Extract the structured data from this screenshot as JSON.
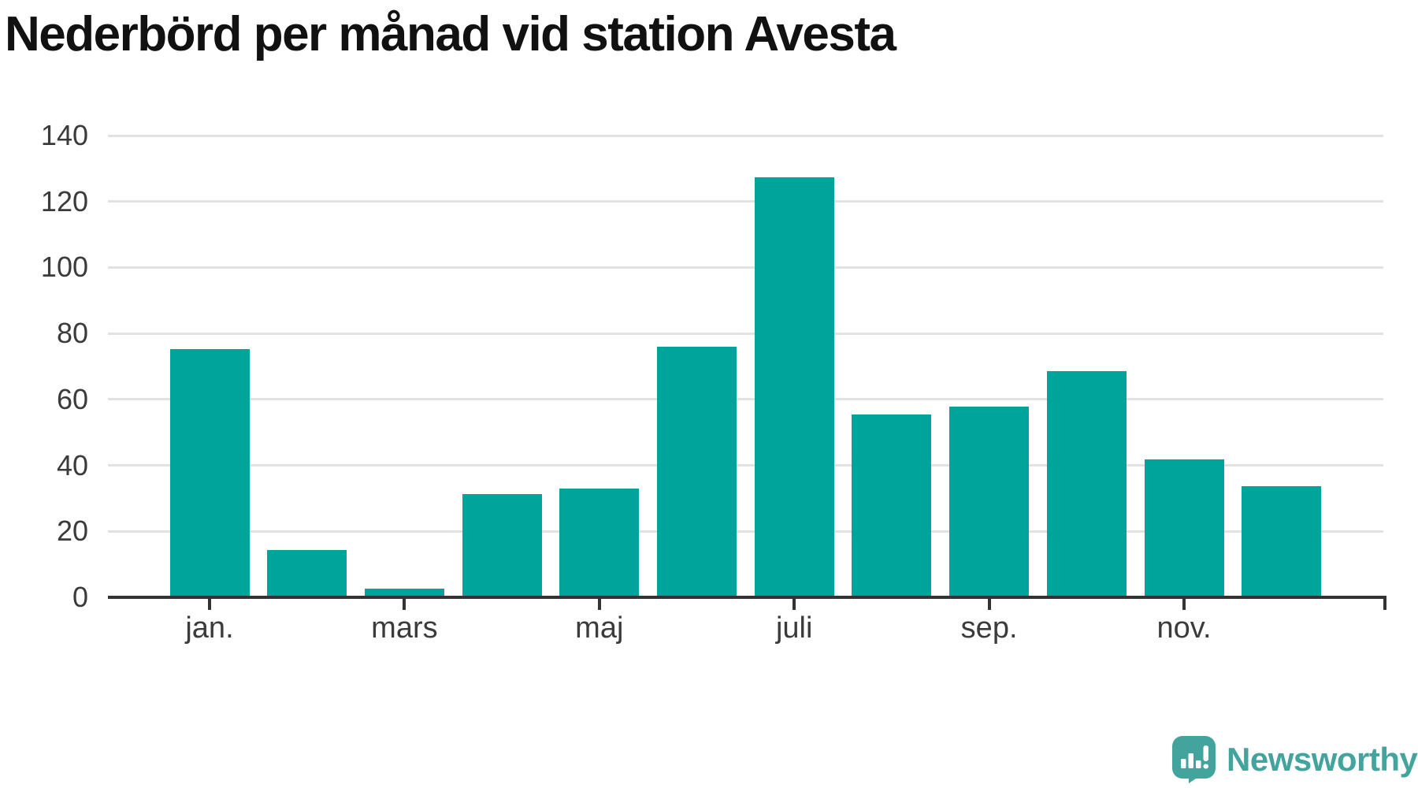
{
  "chart_data": {
    "type": "bar",
    "title": "Nederbörd per månad vid station Avesta",
    "x": [
      1,
      2,
      3,
      4,
      5,
      6,
      7,
      8,
      9,
      10,
      11,
      12
    ],
    "values": [
      75.3,
      14.4,
      2.6,
      31.2,
      33.0,
      76.0,
      127.3,
      55.5,
      57.7,
      68.6,
      41.9,
      33.6
    ],
    "xticks": [
      {
        "x": 1,
        "label": "jan."
      },
      {
        "x": 3,
        "label": "mars"
      },
      {
        "x": 5,
        "label": "maj"
      },
      {
        "x": 7,
        "label": "juli"
      },
      {
        "x": 9,
        "label": "sep."
      },
      {
        "x": 11,
        "label": "nov."
      }
    ],
    "yticks": [
      0,
      20,
      40,
      60,
      80,
      100,
      120,
      140
    ],
    "ylim": [
      0,
      140
    ],
    "xlabel": "",
    "ylabel": "",
    "grid": "horizontal",
    "legend": "none",
    "bar_color": "#00a49b"
  },
  "branding": {
    "logo_text": "Newsworthy",
    "logo_icon": "bar-chart-speech-bubble-icon",
    "logo_color": "#43a49e"
  },
  "colors": {
    "axis": "#333333",
    "grid": "#e2e2e2",
    "tick_label": "#3b3b3b",
    "title": "#111111",
    "background": "#ffffff"
  }
}
